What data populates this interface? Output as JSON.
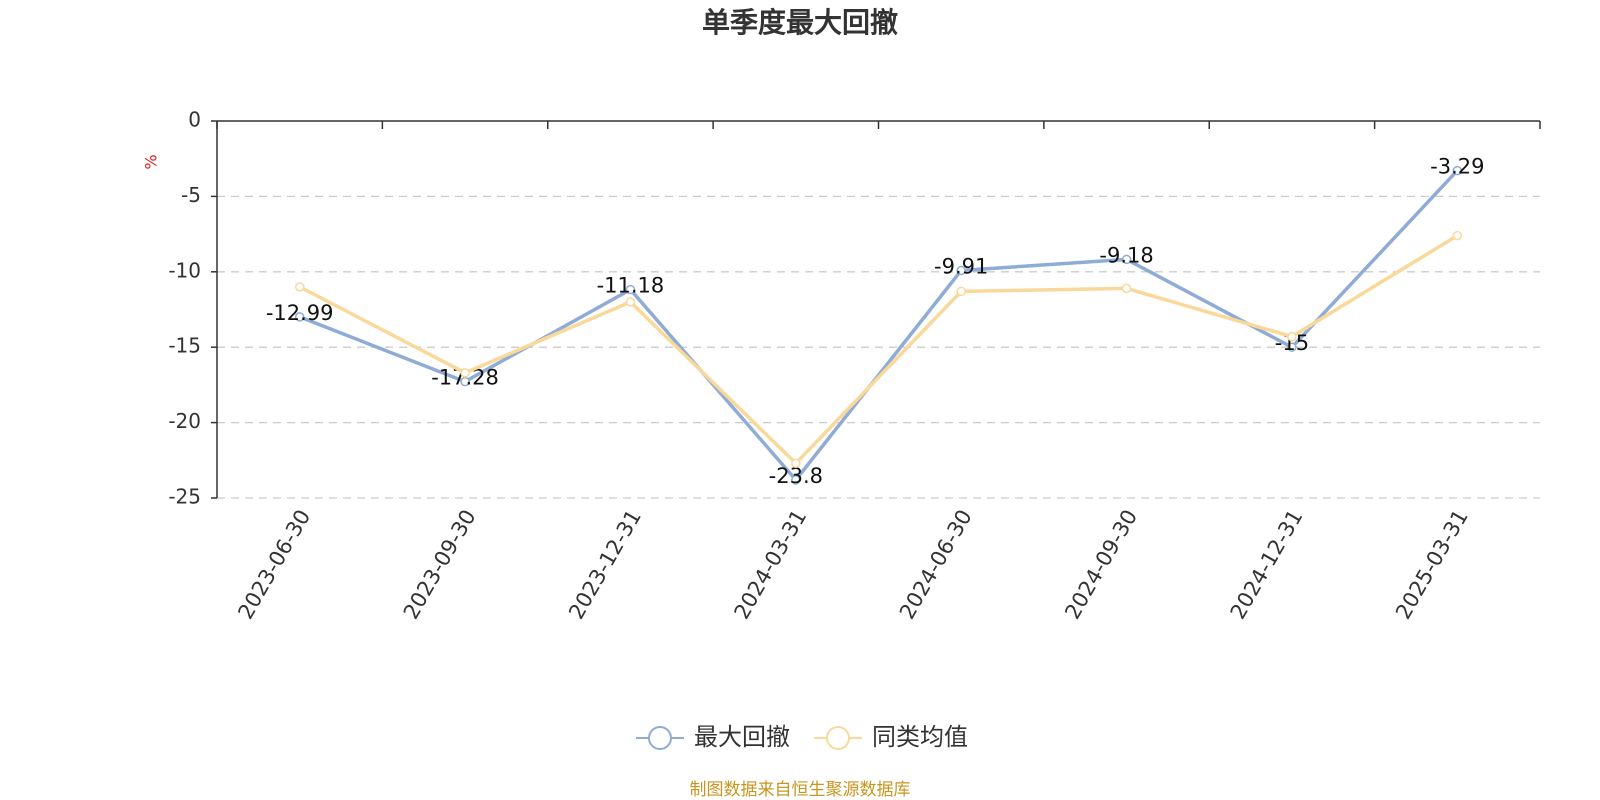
{
  "chart_data": {
    "type": "line",
    "title": "单季度最大回撤",
    "y_label": "%",
    "categories": [
      "2023-06-30",
      "2023-09-30",
      "2023-12-31",
      "2024-03-31",
      "2024-06-30",
      "2024-09-30",
      "2024-12-31",
      "2025-03-31"
    ],
    "series": [
      {
        "name": "最大回撤",
        "color": "#8eacd6",
        "values": [
          -12.99,
          -17.28,
          -11.18,
          -23.8,
          -9.91,
          -9.18,
          -15,
          -3.29
        ],
        "show_labels": true
      },
      {
        "name": "同类均值",
        "color": "#f9d89a",
        "values": [
          -11.0,
          -16.7,
          -12.0,
          -22.7,
          -11.3,
          -11.1,
          -14.3,
          -7.6
        ],
        "show_labels": false
      }
    ],
    "ylim": [
      -25,
      0
    ],
    "yticks": [
      0,
      -5,
      -10,
      -15,
      -20,
      -25
    ],
    "grid": true,
    "source": "制图数据来自恒生聚源数据库"
  }
}
